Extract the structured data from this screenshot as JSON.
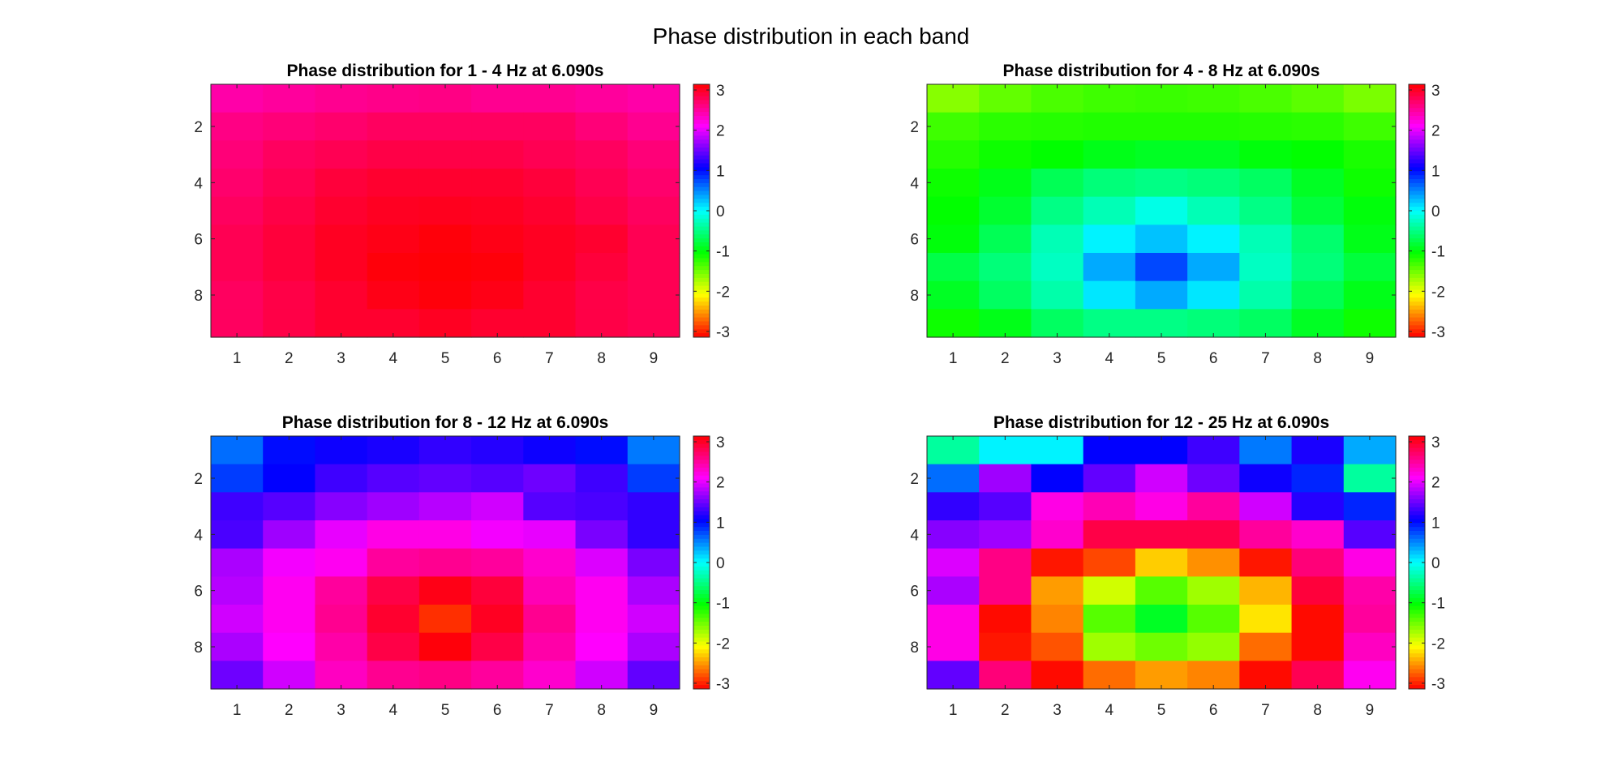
{
  "figure": {
    "title": "Phase distribution in each band"
  },
  "chart_data": [
    {
      "type": "heatmap",
      "title": "Phase distribution for 1 - 4 Hz at 6.090s",
      "x_ticks": [
        1,
        2,
        3,
        4,
        5,
        6,
        7,
        8,
        9
      ],
      "y_ticks": [
        2,
        4,
        6,
        8
      ],
      "colorbar_ticks": [
        3,
        2,
        1,
        0,
        -1,
        -2,
        -3
      ],
      "clim": [
        -3.1416,
        3.1416
      ],
      "colormap": "hsv",
      "values": [
        [
          2.45,
          2.5,
          2.55,
          2.58,
          2.6,
          2.55,
          2.55,
          2.5,
          2.45
        ],
        [
          2.6,
          2.65,
          2.7,
          2.75,
          2.75,
          2.75,
          2.75,
          2.65,
          2.55
        ],
        [
          2.65,
          2.75,
          2.8,
          2.85,
          2.85,
          2.85,
          2.8,
          2.75,
          2.65
        ],
        [
          2.7,
          2.8,
          2.9,
          2.95,
          2.95,
          2.95,
          2.9,
          2.8,
          2.7
        ],
        [
          2.75,
          2.85,
          2.95,
          3.0,
          3.02,
          3.0,
          2.95,
          2.85,
          2.75
        ],
        [
          2.8,
          2.9,
          3.0,
          3.05,
          3.1,
          3.05,
          3.0,
          2.95,
          2.8
        ],
        [
          2.8,
          2.9,
          3.0,
          3.1,
          3.12,
          3.1,
          3.0,
          2.9,
          2.8
        ],
        [
          2.75,
          2.85,
          2.95,
          3.05,
          3.1,
          3.05,
          2.95,
          2.85,
          2.8
        ],
        [
          2.75,
          2.85,
          2.95,
          2.95,
          3.0,
          2.95,
          2.95,
          2.85,
          2.8
        ]
      ]
    },
    {
      "type": "heatmap",
      "title": "Phase distribution for 4 - 8 Hz at 6.090s",
      "x_ticks": [
        1,
        2,
        3,
        4,
        5,
        6,
        7,
        8,
        9
      ],
      "y_ticks": [
        2,
        4,
        6,
        8
      ],
      "colorbar_ticks": [
        3,
        2,
        1,
        0,
        -1,
        -2,
        -3
      ],
      "clim": [
        -3.1416,
        3.1416
      ],
      "colormap": "hsv",
      "values": [
        [
          -1.6,
          -1.45,
          -1.35,
          -1.3,
          -1.28,
          -1.3,
          -1.35,
          -1.42,
          -1.55
        ],
        [
          -1.3,
          -1.22,
          -1.2,
          -1.18,
          -1.18,
          -1.18,
          -1.2,
          -1.22,
          -1.3
        ],
        [
          -1.2,
          -1.1,
          -1.05,
          -0.95,
          -0.9,
          -0.9,
          -1.0,
          -1.05,
          -1.15
        ],
        [
          -1.1,
          -0.95,
          -0.7,
          -0.55,
          -0.5,
          -0.55,
          -0.65,
          -0.9,
          -1.1
        ],
        [
          -1.05,
          -0.85,
          -0.5,
          -0.3,
          -0.1,
          -0.3,
          -0.5,
          -0.8,
          -1.0
        ],
        [
          -1.0,
          -0.7,
          -0.3,
          0.05,
          0.25,
          0.05,
          -0.3,
          -0.6,
          -0.95
        ],
        [
          -0.75,
          -0.55,
          -0.25,
          0.35,
          0.75,
          0.35,
          -0.25,
          -0.55,
          -0.8
        ],
        [
          -0.9,
          -0.65,
          -0.35,
          0.1,
          0.35,
          0.1,
          -0.35,
          -0.7,
          -0.95
        ],
        [
          -1.1,
          -0.95,
          -0.65,
          -0.5,
          -0.5,
          -0.55,
          -0.65,
          -0.9,
          -1.1
        ]
      ]
    },
    {
      "type": "heatmap",
      "title": "Phase distribution for 8 - 12 Hz at 6.090s",
      "x_ticks": [
        1,
        2,
        3,
        4,
        5,
        6,
        7,
        8,
        9
      ],
      "y_ticks": [
        2,
        4,
        6,
        8
      ],
      "colorbar_ticks": [
        3,
        2,
        1,
        0,
        -1,
        -2,
        -3
      ],
      "clim": [
        -3.1416,
        3.1416
      ],
      "colormap": "hsv",
      "values": [
        [
          0.6,
          1.0,
          1.1,
          1.15,
          1.25,
          1.2,
          1.1,
          1.0,
          0.55
        ],
        [
          0.8,
          1.05,
          1.3,
          1.4,
          1.45,
          1.4,
          1.5,
          1.3,
          0.8
        ],
        [
          1.3,
          1.4,
          1.6,
          1.7,
          1.8,
          1.9,
          1.4,
          1.35,
          1.25
        ],
        [
          1.35,
          1.7,
          2.0,
          2.2,
          2.2,
          2.05,
          2.0,
          1.55,
          1.25
        ],
        [
          1.75,
          2.05,
          2.15,
          2.5,
          2.55,
          2.5,
          2.3,
          1.95,
          1.55
        ],
        [
          1.8,
          2.15,
          2.5,
          2.85,
          3.05,
          2.9,
          2.4,
          2.15,
          1.75
        ],
        [
          1.9,
          2.15,
          2.55,
          2.95,
          -2.95,
          3.0,
          2.55,
          2.15,
          1.9
        ],
        [
          1.75,
          2.1,
          2.45,
          2.85,
          3.1,
          2.85,
          2.45,
          2.1,
          1.75
        ],
        [
          1.5,
          1.9,
          2.35,
          2.55,
          2.6,
          2.5,
          2.3,
          1.9,
          1.45
        ]
      ]
    },
    {
      "type": "heatmap",
      "title": "Phase distribution for 12 - 25 Hz at 6.090s",
      "x_ticks": [
        1,
        2,
        3,
        4,
        5,
        6,
        7,
        8,
        9
      ],
      "y_ticks": [
        2,
        4,
        6,
        8
      ],
      "colorbar_ticks": [
        3,
        2,
        1,
        0,
        -1,
        -2,
        -3
      ],
      "clim": [
        -3.1416,
        3.1416
      ],
      "colormap": "hsv",
      "values": [
        [
          -0.4,
          0.05,
          0.05,
          1.05,
          1.05,
          1.3,
          0.55,
          1.15,
          0.35
        ],
        [
          0.6,
          1.7,
          1.05,
          1.45,
          1.9,
          1.5,
          1.1,
          0.9,
          -0.4
        ],
        [
          1.25,
          1.4,
          2.2,
          2.4,
          2.2,
          2.5,
          1.9,
          1.2,
          0.9
        ],
        [
          1.6,
          1.7,
          2.3,
          2.85,
          2.85,
          2.85,
          2.5,
          2.3,
          1.4
        ],
        [
          1.95,
          2.6,
          -3.05,
          -2.85,
          -2.3,
          -2.55,
          -3.05,
          2.65,
          2.2
        ],
        [
          1.75,
          2.6,
          -2.5,
          -1.9,
          -1.4,
          -1.7,
          -2.4,
          2.9,
          2.45
        ],
        [
          2.2,
          -3.1,
          -2.6,
          -1.4,
          -0.9,
          -1.4,
          -2.2,
          -3.1,
          2.5
        ],
        [
          2.2,
          -3.05,
          -2.8,
          -1.7,
          -1.5,
          -1.65,
          -2.7,
          -3.1,
          2.35
        ],
        [
          1.45,
          2.65,
          -3.1,
          -2.7,
          -2.5,
          -2.6,
          -3.1,
          2.8,
          2.15
        ]
      ]
    }
  ]
}
